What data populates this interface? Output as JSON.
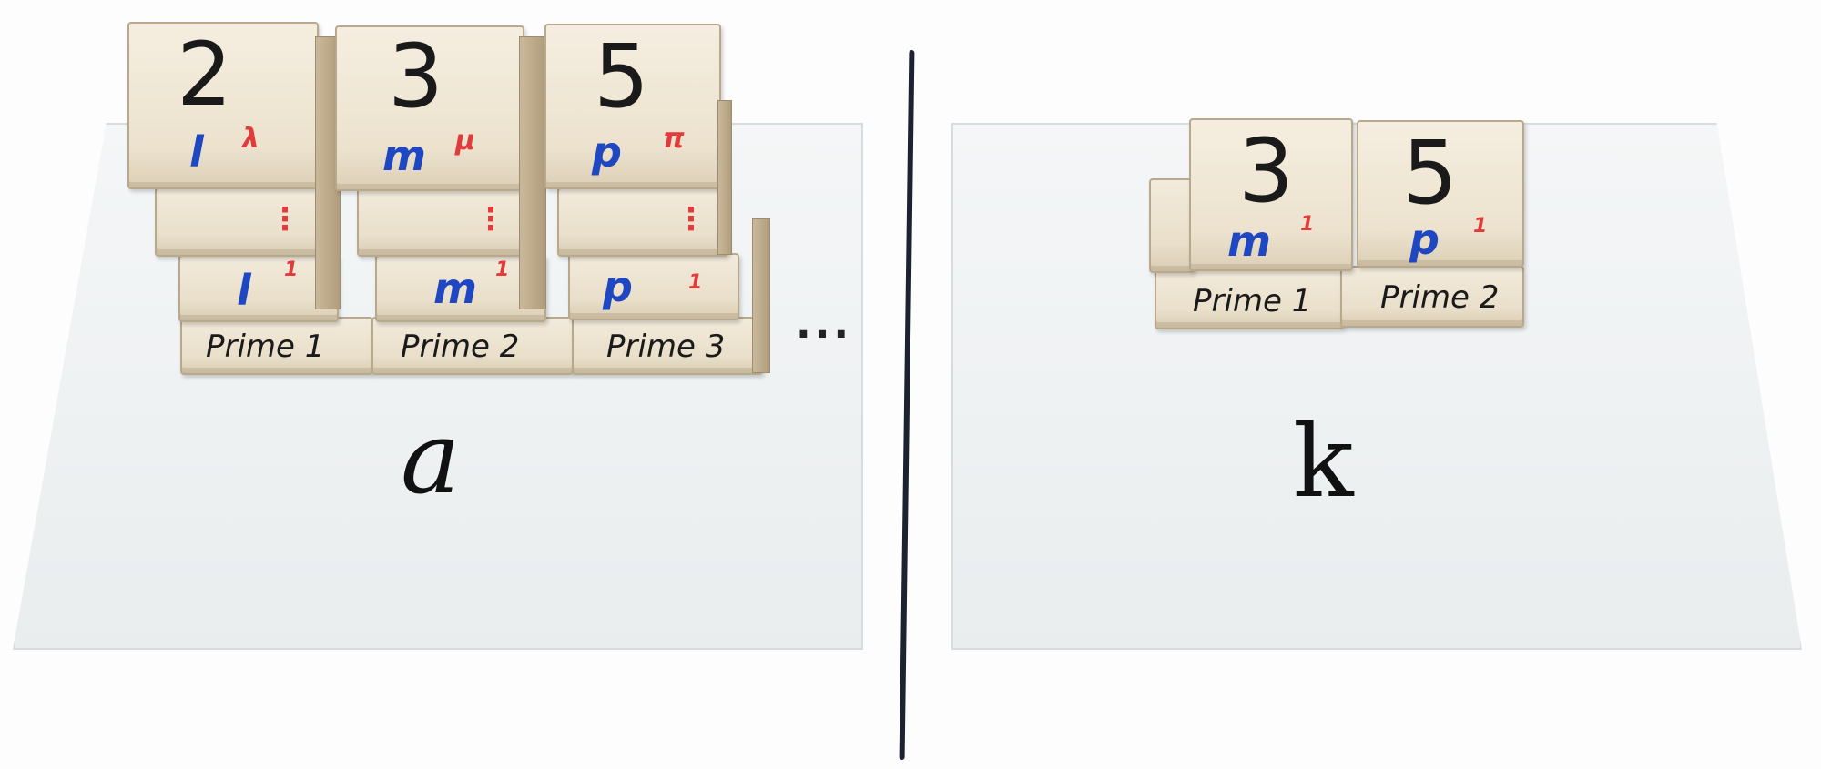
{
  "left_panel": {
    "columns": [
      {
        "number": "2",
        "variable": "l",
        "exponent": "λ",
        "mid_marks": "⋮",
        "lower_variable": "l",
        "lower_exponent": "1",
        "label": "Prime 1"
      },
      {
        "number": "3",
        "variable": "m",
        "exponent": "μ",
        "mid_marks": "⋮",
        "lower_variable": "m",
        "lower_exponent": "1",
        "label": "Prime 2"
      },
      {
        "number": "5",
        "variable": "p",
        "exponent": "π",
        "mid_marks": "⋮",
        "lower_variable": "p",
        "lower_exponent": "1",
        "label": "Prime 3"
      }
    ],
    "continuation": "...",
    "plate_letter": "a"
  },
  "right_panel": {
    "columns": [
      {
        "number": "3",
        "variable": "m",
        "exponent": "1",
        "label": "Prime 1"
      },
      {
        "number": "5",
        "variable": "p",
        "exponent": "1",
        "label": "Prime 2"
      }
    ],
    "plate_letter": "k"
  },
  "colors": {
    "variable_ink": "#1f47c2",
    "exponent_ink": "#e23b3b",
    "number_ink": "#1a1a1a",
    "divider": "#1d2233"
  }
}
